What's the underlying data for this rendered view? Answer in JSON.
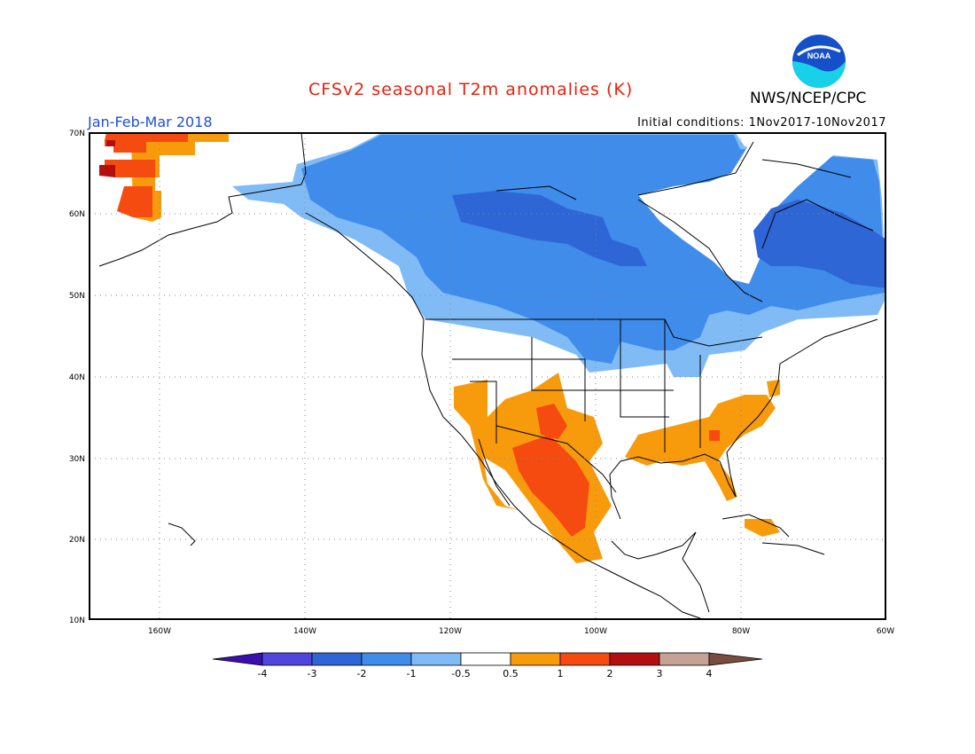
{
  "header": {
    "title": "CFSv2 seasonal T2m anomalies (K)",
    "agency": "NWS/NCEP/CPC",
    "logo_text": "NOAA",
    "period": "Jan-Feb-Mar 2018",
    "initial_conditions": "Initial conditions: 1Nov2017-10Nov2017"
  },
  "map": {
    "lat_labels": [
      "70N",
      "60N",
      "50N",
      "40N",
      "30N",
      "20N",
      "10N"
    ],
    "lon_labels": [
      "160W",
      "140W",
      "120W",
      "100W",
      "80W",
      "60W"
    ],
    "lat_range": [
      10,
      70
    ],
    "lon_range": [
      -172,
      -60
    ]
  },
  "colorbar": {
    "labels": [
      "-4",
      "-3",
      "-2",
      "-1",
      "-0.5",
      "0.5",
      "1",
      "2",
      "3",
      "4"
    ],
    "colors": [
      "#3a0fb0",
      "#5045dc",
      "#2e66d6",
      "#3f8ceb",
      "#80bbf5",
      "#ffffff",
      "#f79b0c",
      "#f54a10",
      "#b30f10",
      "#c6a195",
      "#7a4c40"
    ]
  }
}
